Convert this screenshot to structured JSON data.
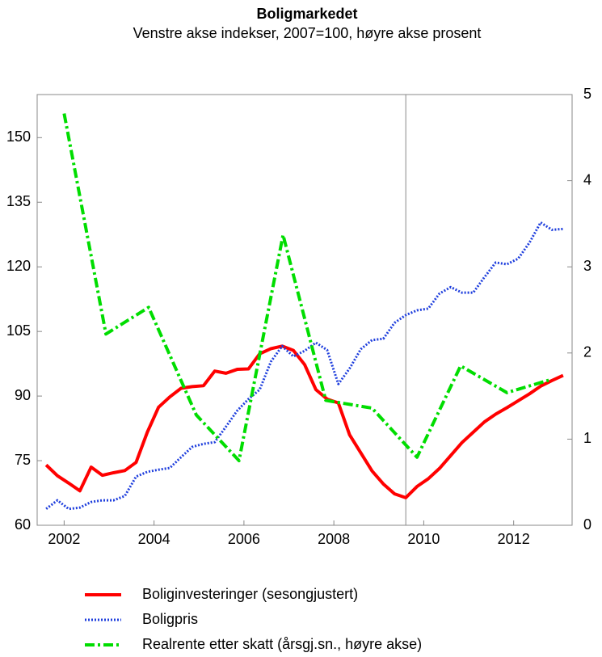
{
  "chart_data": {
    "type": "line",
    "title": "Boligmarkedet",
    "subtitle": "Venstre akse indekser, 2007=100, høyre akse prosent",
    "xlim": [
      2001.4,
      2013.3
    ],
    "xticks": [
      2002,
      2004,
      2006,
      2008,
      2010,
      2012
    ],
    "ylim": [
      60,
      160
    ],
    "yticks": [
      60,
      75,
      90,
      105,
      120,
      135,
      150
    ],
    "y2lim": [
      0,
      5
    ],
    "y2ticks": [
      0,
      1,
      2,
      3,
      4,
      5
    ],
    "vline": 2009.6,
    "series": [
      {
        "name": "Boliginvesteringer (sesongjustert)",
        "color": "#ff0000",
        "style": "solid",
        "x": [
          2001.6,
          2001.85,
          2002.1,
          2002.35,
          2002.6,
          2002.85,
          2003.1,
          2003.35,
          2003.6,
          2003.85,
          2004.1,
          2004.35,
          2004.6,
          2004.85,
          2005.1,
          2005.35,
          2005.6,
          2005.85,
          2006.1,
          2006.35,
          2006.6,
          2006.85,
          2007.1,
          2007.35,
          2007.6,
          2007.85,
          2008.1,
          2008.35,
          2008.6,
          2008.85,
          2009.1,
          2009.35,
          2009.6,
          2009.85,
          2010.1,
          2010.35,
          2010.6,
          2010.85,
          2011.1,
          2011.35,
          2011.6,
          2011.85,
          2012.1,
          2012.35,
          2012.6,
          2012.85,
          2013.1
        ],
        "values": [
          74,
          71.5,
          69.8,
          68,
          73.5,
          71.6,
          72.2,
          72.7,
          74.6,
          81.6,
          87.4,
          89.8,
          91.8,
          92.2,
          92.4,
          95.8,
          95.3,
          96.2,
          96.3,
          99.8,
          101,
          101.6,
          100.6,
          97.3,
          91.5,
          89.3,
          88.4,
          81,
          76.8,
          72.6,
          69.6,
          67.3,
          66.4,
          69,
          70.8,
          73.2,
          76.2,
          79.2,
          81.6,
          84,
          85.8,
          87.3,
          88.9,
          90.5,
          92.3,
          93.6,
          94.8
        ]
      },
      {
        "name": "Boligpris",
        "color": "#1f3fdd",
        "style": "dotted",
        "x": [
          2001.6,
          2001.85,
          2002.1,
          2002.35,
          2002.6,
          2002.85,
          2003.1,
          2003.35,
          2003.6,
          2003.85,
          2004.1,
          2004.35,
          2004.6,
          2004.85,
          2005.1,
          2005.35,
          2005.6,
          2005.85,
          2006.1,
          2006.35,
          2006.6,
          2006.85,
          2007.1,
          2007.35,
          2007.6,
          2007.85,
          2008.1,
          2008.35,
          2008.6,
          2008.85,
          2009.1,
          2009.35,
          2009.6,
          2009.85,
          2010.1,
          2010.35,
          2010.6,
          2010.85,
          2011.1,
          2011.35,
          2011.6,
          2011.85,
          2012.1,
          2012.35,
          2012.6,
          2012.85,
          2013.1
        ],
        "values": [
          63.8,
          65.8,
          63.8,
          64.1,
          65.4,
          65.8,
          65.8,
          66.8,
          71.3,
          72.4,
          72.9,
          73.3,
          75.8,
          78.2,
          78.9,
          79.3,
          82.9,
          86.6,
          89.3,
          91.5,
          98,
          101.6,
          99.2,
          100.5,
          102.4,
          100.7,
          92.8,
          96.4,
          100.9,
          103,
          103.3,
          107,
          108.8,
          109.9,
          110.3,
          113.8,
          115.3,
          114,
          114,
          117.6,
          121,
          120.6,
          121.9,
          125.6,
          130.3,
          128.6,
          128.8
        ]
      },
      {
        "name": "Realrente etter skatt (årsgj.sn., høyre akse)",
        "color": "#00dd00",
        "style": "dashdot",
        "axis": "y2",
        "x": [
          2002.0,
          2002.93,
          2003.88,
          2004.94,
          2005.89,
          2006.87,
          2007.82,
          2008.85,
          2009.85,
          2010.82,
          2011.85,
          2012.82
        ],
        "values": [
          4.78,
          2.22,
          2.53,
          1.28,
          0.75,
          3.37,
          1.45,
          1.36,
          0.79,
          1.85,
          1.54,
          1.69
        ]
      }
    ]
  }
}
